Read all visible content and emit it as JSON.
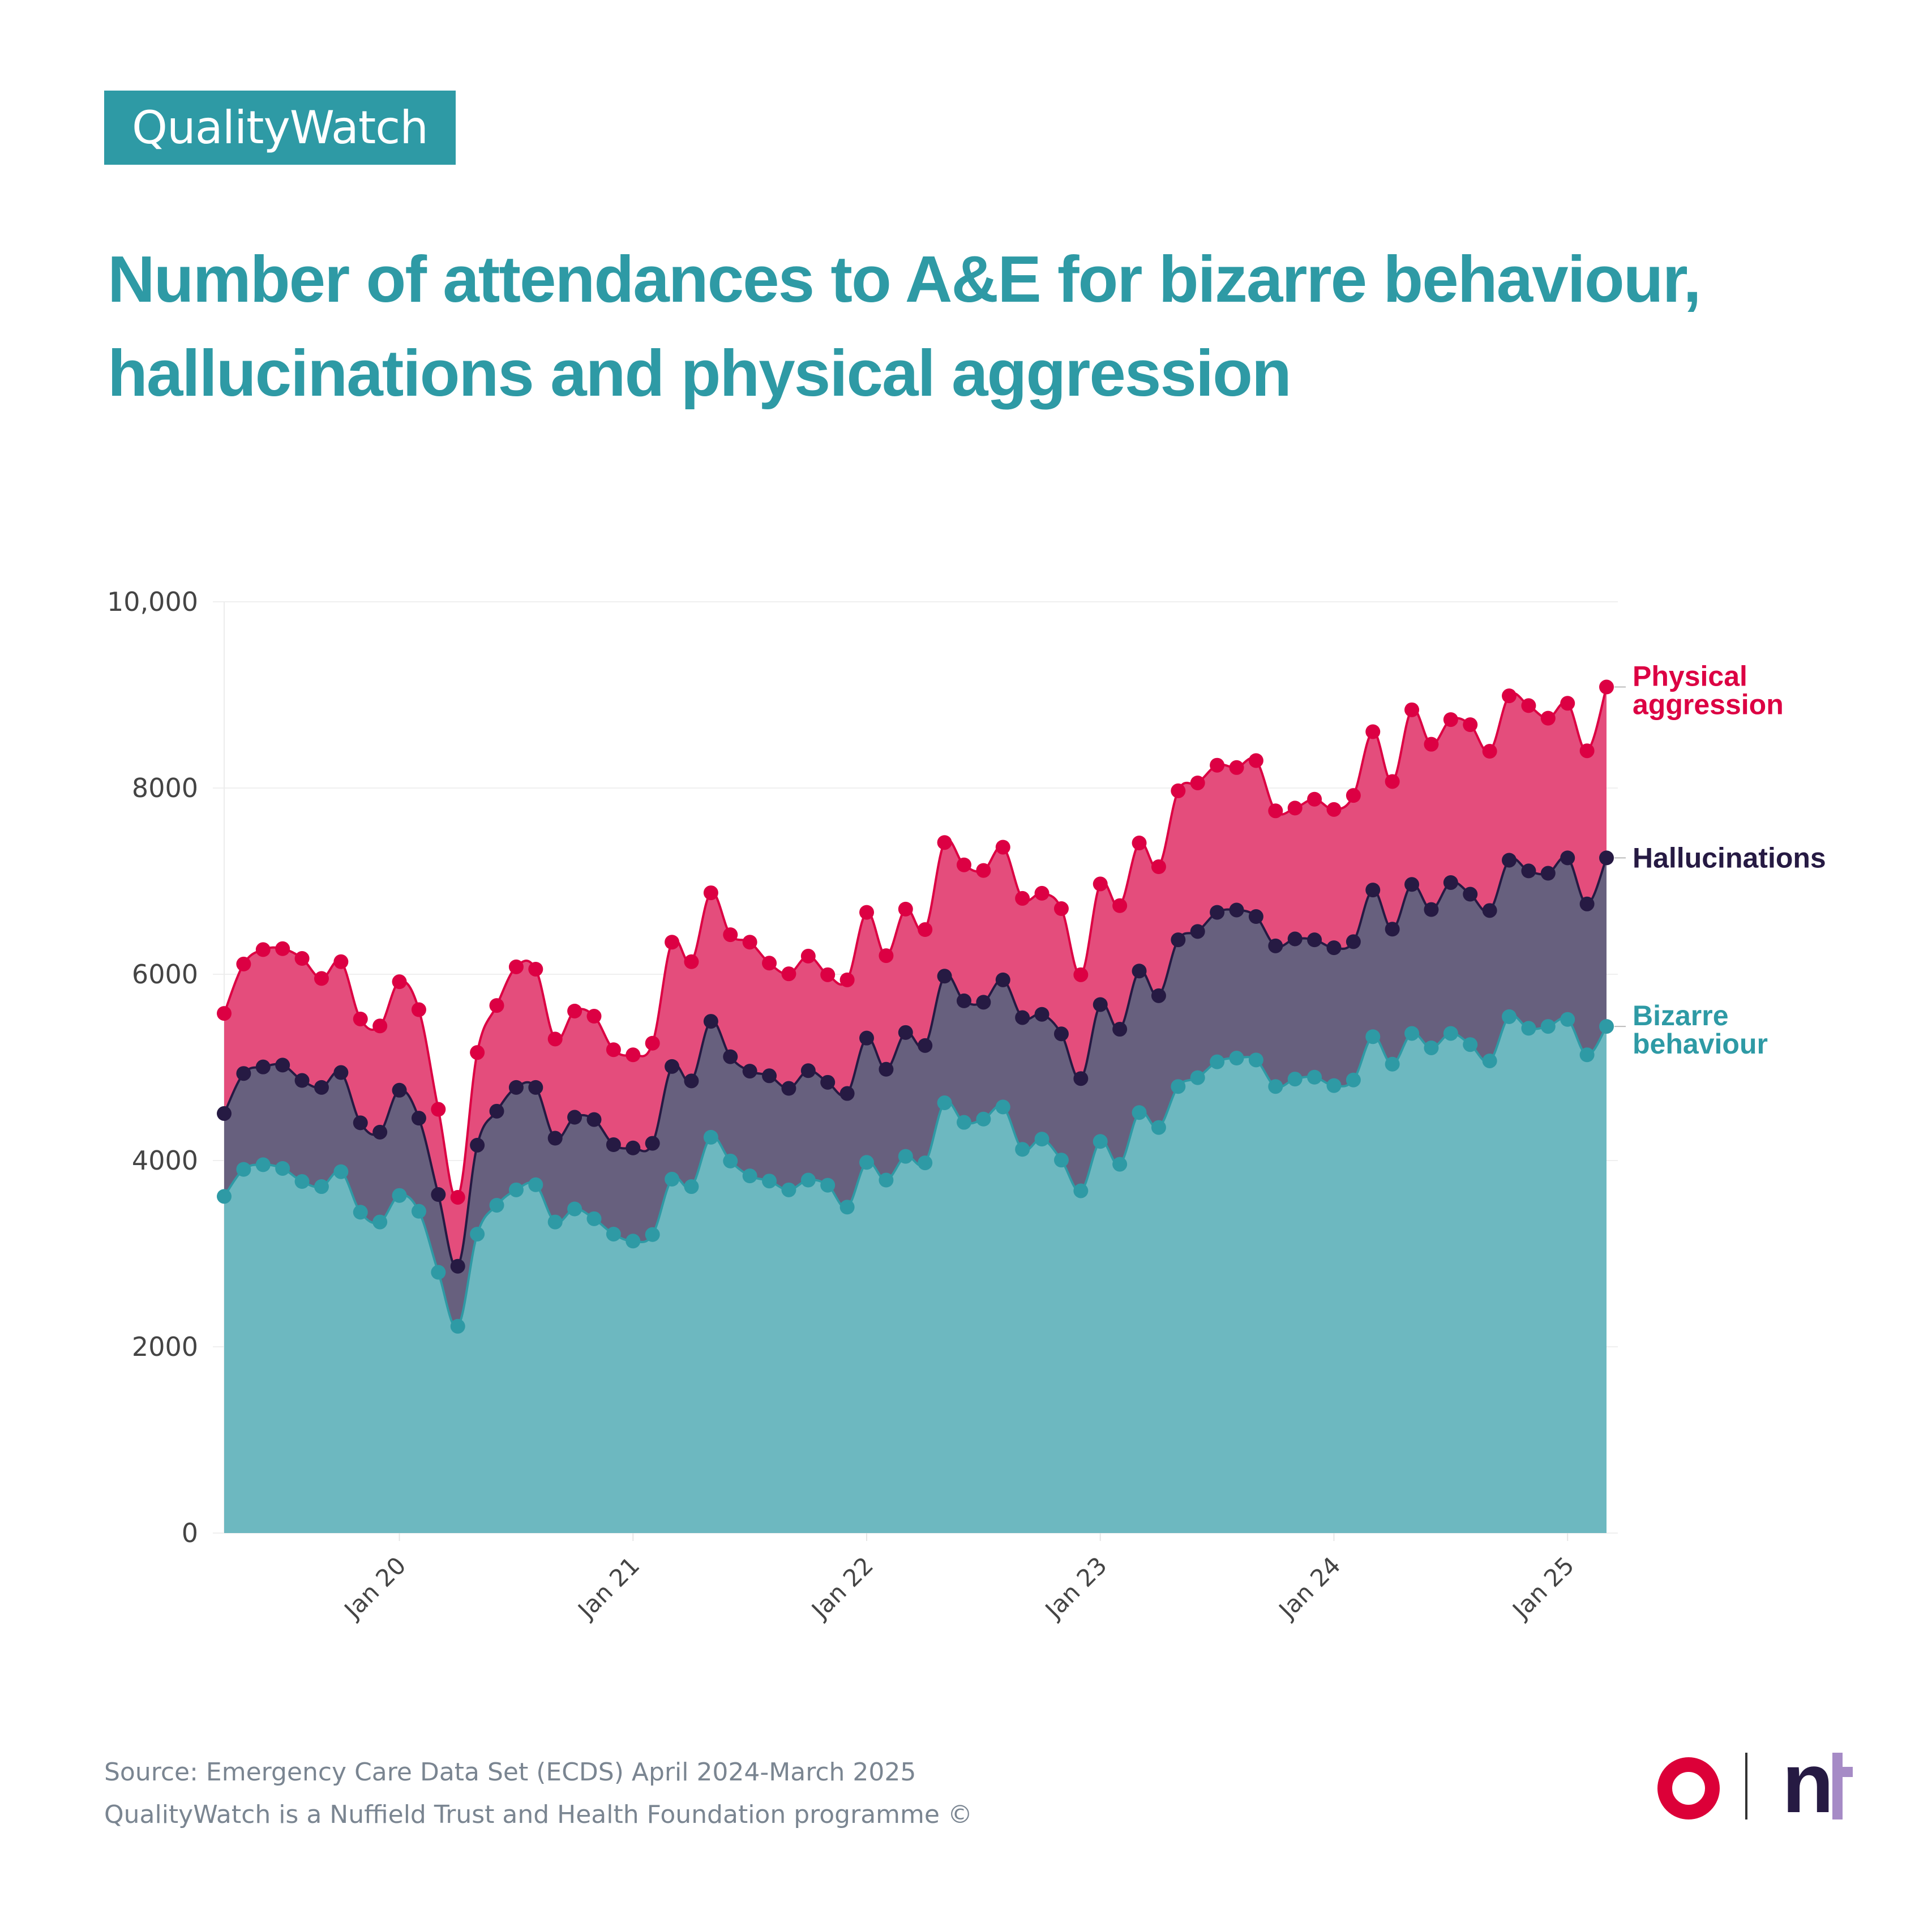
{
  "brand": {
    "label": "QualityWatch"
  },
  "title": {
    "line1": "Number of attendances to A&E for bizarre behaviour,",
    "line2": "hallucinations and physical aggression"
  },
  "footer": {
    "source": "Source: Emergency Care Data Set (ECDS) April 2024-March 2025",
    "credit": "QualityWatch is a Nuffield Trust and Health Foundation programme ©"
  },
  "logos": [
    "health-foundation-logo",
    "nuffield-trust-logo"
  ],
  "colors": {
    "brand": "#2e9aa5",
    "physical_aggression_line": "#dc0043",
    "physical_aggression_fill": "#e44d7c",
    "hallucinations_line": "#261a43",
    "hallucinations_fill": "#67607e",
    "bizarre_behaviour_line": "#2e9aa5",
    "bizarre_behaviour_fill": "#6db8c0"
  },
  "chart_data": {
    "type": "area",
    "stacked": false,
    "title": "Number of attendances to A&E for bizarre behaviour, hallucinations and physical aggression",
    "xlabel": "",
    "ylabel": "",
    "ylim": [
      0,
      10000
    ],
    "yticks": [
      0,
      2000,
      4000,
      6000,
      8000,
      10000
    ],
    "ytick_labels": [
      "0",
      "2000",
      "4000",
      "6000",
      "8000",
      "10,000"
    ],
    "grid": true,
    "legend": "direct-labels-right",
    "x_start": "Apr 2019",
    "x_end": "Mar 2025",
    "xticks": [
      {
        "index": 9,
        "label": "Jan 20"
      },
      {
        "index": 21,
        "label": "Jan 21"
      },
      {
        "index": 33,
        "label": "Jan 22"
      },
      {
        "index": 45,
        "label": "Jan 23"
      },
      {
        "index": 57,
        "label": "Jan 24"
      },
      {
        "index": 69,
        "label": "Jan 25"
      }
    ],
    "series": [
      {
        "name": "Physical aggression",
        "label_line1": "Physical",
        "label_line2": "aggression",
        "values": [
          5580,
          6110,
          6265,
          6275,
          6170,
          5955,
          6135,
          5520,
          5445,
          5920,
          5620,
          4550,
          3605,
          5160,
          5665,
          6080,
          6055,
          5305,
          5605,
          5550,
          5190,
          5135,
          5260,
          6345,
          6135,
          6875,
          6425,
          6345,
          6120,
          6005,
          6195,
          5995,
          5940,
          6665,
          6200,
          6700,
          6480,
          7415,
          7175,
          7115,
          7365,
          6815,
          6870,
          6705,
          5995,
          6970,
          6737,
          7410,
          7155,
          7970,
          8055,
          8245,
          8220,
          8295,
          7755,
          7785,
          7880,
          7770,
          7920,
          8605,
          8070,
          8840,
          8470,
          8735,
          8680,
          8395,
          8990,
          8885,
          8750,
          8910,
          8400,
          9085
        ]
      },
      {
        "name": "Hallucinations",
        "label_line1": "Hallucinations",
        "values": [
          4505,
          4935,
          5005,
          5025,
          4860,
          4785,
          4945,
          4405,
          4305,
          4755,
          4455,
          3635,
          2865,
          4165,
          4530,
          4785,
          4785,
          4240,
          4465,
          4440,
          4170,
          4135,
          4185,
          5010,
          4855,
          5495,
          5115,
          4960,
          4910,
          4775,
          4965,
          4840,
          4720,
          5315,
          4980,
          5375,
          5235,
          5980,
          5715,
          5700,
          5940,
          5535,
          5570,
          5360,
          4880,
          5675,
          5410,
          6035,
          5770,
          6370,
          6460,
          6665,
          6690,
          6620,
          6305,
          6380,
          6370,
          6285,
          6350,
          6905,
          6485,
          6965,
          6695,
          6985,
          6860,
          6685,
          7225,
          7110,
          7085,
          7250,
          6755,
          7250
        ]
      },
      {
        "name": "Bizarre behaviour",
        "label_line1": "Bizarre",
        "label_line2": "behaviour",
        "values": [
          3615,
          3905,
          3955,
          3915,
          3775,
          3720,
          3880,
          3445,
          3340,
          3625,
          3455,
          2800,
          2220,
          3210,
          3520,
          3685,
          3740,
          3340,
          3480,
          3375,
          3210,
          3135,
          3205,
          3800,
          3720,
          4250,
          3995,
          3835,
          3780,
          3685,
          3790,
          3735,
          3500,
          3980,
          3790,
          4045,
          3975,
          4620,
          4410,
          4445,
          4575,
          4120,
          4230,
          4005,
          3675,
          4205,
          3960,
          4515,
          4355,
          4795,
          4890,
          5060,
          5100,
          5080,
          4795,
          4875,
          4895,
          4805,
          4865,
          5330,
          5035,
          5365,
          5210,
          5365,
          5245,
          5070,
          5545,
          5420,
          5440,
          5515,
          5135,
          5440
        ]
      }
    ]
  }
}
